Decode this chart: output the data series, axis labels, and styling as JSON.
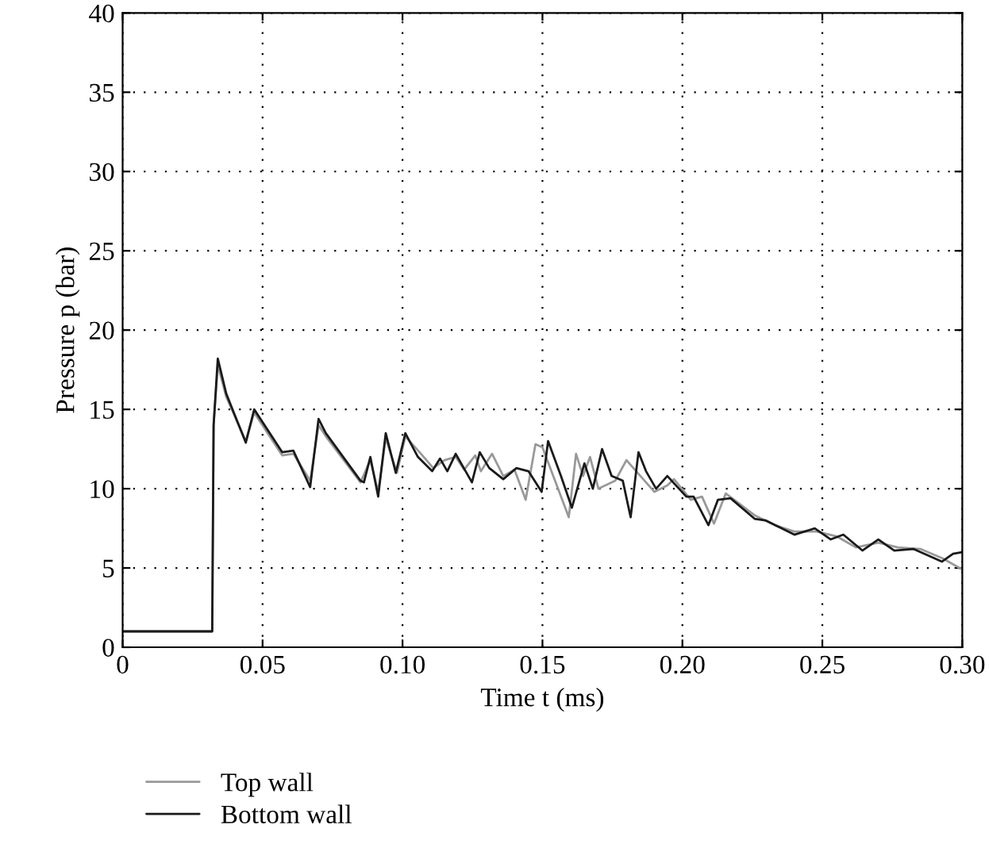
{
  "chart_data": {
    "type": "line",
    "xlabel": "Time t (ms)",
    "ylabel": "Pressure p (bar)",
    "xlim": [
      0,
      0.3
    ],
    "ylim": [
      0,
      40
    ],
    "xticks": [
      0,
      {
        "value": 0.05,
        "label": "0.05"
      },
      {
        "value": 0.1,
        "label": "0.10"
      },
      {
        "value": 0.15,
        "label": "0.15"
      },
      {
        "value": 0.2,
        "label": "0.20"
      },
      {
        "value": 0.25,
        "label": "0.25"
      },
      {
        "value": 0.3,
        "label": "0.30"
      }
    ],
    "yticks": [
      0,
      5,
      10,
      15,
      20,
      25,
      30,
      35,
      40
    ],
    "grid": true,
    "legend": "bottom left",
    "marker": "none",
    "line_style": "solid",
    "series": [
      {
        "name": "Top wall",
        "color": "#999999",
        "x": [
          0,
          0.032,
          0.0325,
          0.034,
          0.037,
          0.044,
          0.047,
          0.057,
          0.061,
          0.067,
          0.07,
          0.0726,
          0.085,
          0.0885,
          0.0913,
          0.094,
          0.098,
          0.101,
          0.1066,
          0.111,
          0.115,
          0.119,
          0.122,
          0.126,
          0.128,
          0.132,
          0.136,
          0.14,
          0.144,
          0.1475,
          0.15,
          0.1594,
          0.162,
          0.1645,
          0.167,
          0.17,
          0.176,
          0.18,
          0.185,
          0.19,
          0.1946,
          0.197,
          0.203,
          0.207,
          0.2113,
          0.2155,
          0.226,
          0.233,
          0.24,
          0.248,
          0.255,
          0.262,
          0.27,
          0.277,
          0.285,
          0.293,
          0.3
        ],
        "values": [
          1,
          1,
          14,
          17.8,
          15.8,
          13,
          14.8,
          12.1,
          12.2,
          10.5,
          14,
          13.3,
          10.4,
          11.8,
          9.8,
          13.2,
          11,
          13.3,
          12.2,
          11.3,
          11.8,
          12,
          11.2,
          12.1,
          11.1,
          12.2,
          10.8,
          11.2,
          9.3,
          12.8,
          12.6,
          8.2,
          12.2,
          10.8,
          12,
          10,
          10.5,
          11.8,
          10.8,
          9.8,
          10.2,
          10.6,
          9.3,
          9.5,
          7.8,
          9.7,
          8.3,
          7.7,
          7.3,
          7.3,
          7,
          6.3,
          6.6,
          6.3,
          6.2,
          5.6,
          4.9
        ]
      },
      {
        "name": "Bottom wall",
        "color": "#1a1a1a",
        "x": [
          0,
          0.032,
          0.0325,
          0.034,
          0.037,
          0.044,
          0.047,
          0.057,
          0.061,
          0.067,
          0.07,
          0.0726,
          0.085,
          0.0862,
          0.0885,
          0.0913,
          0.094,
          0.0976,
          0.101,
          0.1055,
          0.1106,
          0.1134,
          0.116,
          0.119,
          0.1248,
          0.1276,
          0.131,
          0.136,
          0.1407,
          0.145,
          0.1497,
          0.152,
          0.1566,
          0.1605,
          0.165,
          0.168,
          0.1713,
          0.1747,
          0.1787,
          0.1815,
          0.1843,
          0.187,
          0.1906,
          0.1946,
          0.2014,
          0.204,
          0.2093,
          0.2127,
          0.2172,
          0.2258,
          0.2297,
          0.24,
          0.2473,
          0.253,
          0.2575,
          0.2643,
          0.27,
          0.2757,
          0.2825,
          0.2927,
          0.2967,
          0.3
        ],
        "values": [
          1,
          1,
          14,
          18.2,
          16,
          12.9,
          15,
          12.3,
          12.4,
          10.1,
          14.4,
          13.5,
          10.5,
          10.4,
          12,
          9.5,
          13.5,
          11,
          13.5,
          12,
          11.1,
          11.9,
          11.1,
          12.2,
          10.4,
          12.3,
          11.3,
          10.6,
          11.3,
          11.1,
          9.8,
          13,
          10.8,
          8.8,
          11.6,
          10,
          12.5,
          10.8,
          10.5,
          8.2,
          12.3,
          11.1,
          10,
          10.8,
          9.5,
          9.5,
          7.7,
          9.3,
          9.4,
          8.1,
          8,
          7.1,
          7.5,
          6.8,
          7.1,
          6.1,
          6.8,
          6.1,
          6.2,
          5.4,
          5.9,
          6
        ]
      }
    ]
  }
}
